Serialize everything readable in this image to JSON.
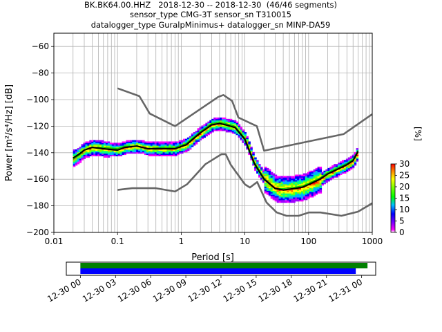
{
  "title": {
    "line1": "BK.BK64.00.HHZ   2018-12-30 -- 2018-12-30  (46/46 segments)",
    "line2": "sensor_type CMG-3T sensor_sn T310015",
    "line3": "datalogger_type GuralpMinimus+ datalogger_sn MINP-DA59"
  },
  "chart_data": [
    {
      "type": "heatmap",
      "name": "ppsd",
      "xlabel": "Period [s]",
      "ylabel": "Power [m²/s⁴/Hz] [dB]",
      "x_scale": "log",
      "xlim": [
        0.01,
        1000
      ],
      "ylim": [
        -200,
        -50
      ],
      "x_ticks": [
        0.01,
        0.1,
        1,
        10,
        100,
        1000
      ],
      "x_tick_labels": [
        "0.01",
        "0.1",
        "1",
        "10",
        "100",
        "1000"
      ],
      "y_ticks": [
        -200,
        -180,
        -160,
        -140,
        -120,
        -100,
        -80,
        -60
      ],
      "y_tick_labels": [
        "−200",
        "−180",
        "−160",
        "−140",
        "−120",
        "−100",
        "−80",
        "−60"
      ],
      "grid": true,
      "nhnm": {
        "name": "NHNM",
        "period": [
          0.1,
          0.22,
          0.32,
          0.8,
          3.8,
          4.6,
          6.3,
          7.9,
          15.4,
          20,
          354.8,
          1000
        ],
        "db": [
          -91.5,
          -97.4,
          -110.5,
          -120,
          -98,
          -96.5,
          -101,
          -113.5,
          -120,
          -138.5,
          -126,
          -111
        ]
      },
      "nlnm": {
        "name": "NLNM",
        "period": [
          0.1,
          0.17,
          0.4,
          0.8,
          1.24,
          2.4,
          4.3,
          5,
          6,
          10,
          12,
          15.6,
          21.9,
          31.6,
          45,
          70,
          101,
          154,
          328,
          600,
          1000
        ],
        "db": [
          -168,
          -166.7,
          -166.7,
          -169.2,
          -163.7,
          -148.6,
          -141.1,
          -141.1,
          -149,
          -163.8,
          -166.2,
          -162.1,
          -177.5,
          -185,
          -187.5,
          -187.5,
          -185,
          -185,
          -187.5,
          -184.4,
          -178
        ]
      },
      "mean_curve": {
        "name": "mean",
        "period": [
          0.02,
          0.025,
          0.03,
          0.04,
          0.06,
          0.1,
          0.13,
          0.2,
          0.3,
          0.5,
          0.8,
          1.2,
          2,
          3,
          4,
          5,
          7,
          10,
          14,
          20,
          30,
          40,
          60,
          80,
          100,
          150,
          200,
          300,
          400,
          500,
          600
        ],
        "db": [
          -144,
          -141,
          -138,
          -136,
          -137,
          -138,
          -136,
          -135,
          -137,
          -137,
          -137,
          -134,
          -125,
          -119,
          -118,
          -119,
          -121,
          -130,
          -148,
          -160,
          -167,
          -168,
          -167,
          -166,
          -164,
          -160,
          -156,
          -152,
          -149,
          -146,
          -139
        ]
      },
      "mode_curve": {
        "name": "mode",
        "period": [
          0.02,
          0.025,
          0.03,
          0.04,
          0.06,
          0.1,
          0.13,
          0.2,
          0.3,
          0.5,
          0.8,
          1.2,
          2,
          3,
          4,
          5,
          7,
          10,
          14,
          20,
          30,
          40,
          60,
          80,
          100,
          150,
          200,
          300,
          400,
          500,
          600
        ],
        "db": [
          -145,
          -142,
          -138,
          -136,
          -136,
          -137,
          -135,
          -135,
          -137,
          -136,
          -136,
          -133,
          -124,
          -118,
          -117,
          -118,
          -120,
          -129,
          -147,
          -159,
          -167,
          -167,
          -166,
          -165,
          -163,
          -159,
          -155,
          -151,
          -148,
          -145,
          -138
        ]
      },
      "colorbar": {
        "label": "[%]",
        "min": 0,
        "max": 30,
        "ticks": [
          0,
          5,
          10,
          15,
          20,
          25,
          30
        ],
        "tick_labels": [
          "0",
          "5",
          "10",
          "15",
          "20",
          "25",
          "30"
        ]
      }
    },
    {
      "type": "bar",
      "name": "data-coverage",
      "tick_labels": [
        "12-30 00",
        "12-30 03",
        "12-30 06",
        "12-30 09",
        "12-30 12",
        "12-30 15",
        "12-30 18",
        "12-30 21",
        "12-31 00"
      ],
      "tick_hours": [
        0,
        3,
        6,
        9,
        12,
        15,
        18,
        21,
        24
      ],
      "xlim_hours": [
        -1.2,
        25.2
      ],
      "series": [
        {
          "start_hour": 0,
          "end_hour": 24.5,
          "color": "#008000"
        },
        {
          "start_hour": 0,
          "end_hour": 23.5,
          "color": "#0000ff"
        }
      ]
    }
  ]
}
